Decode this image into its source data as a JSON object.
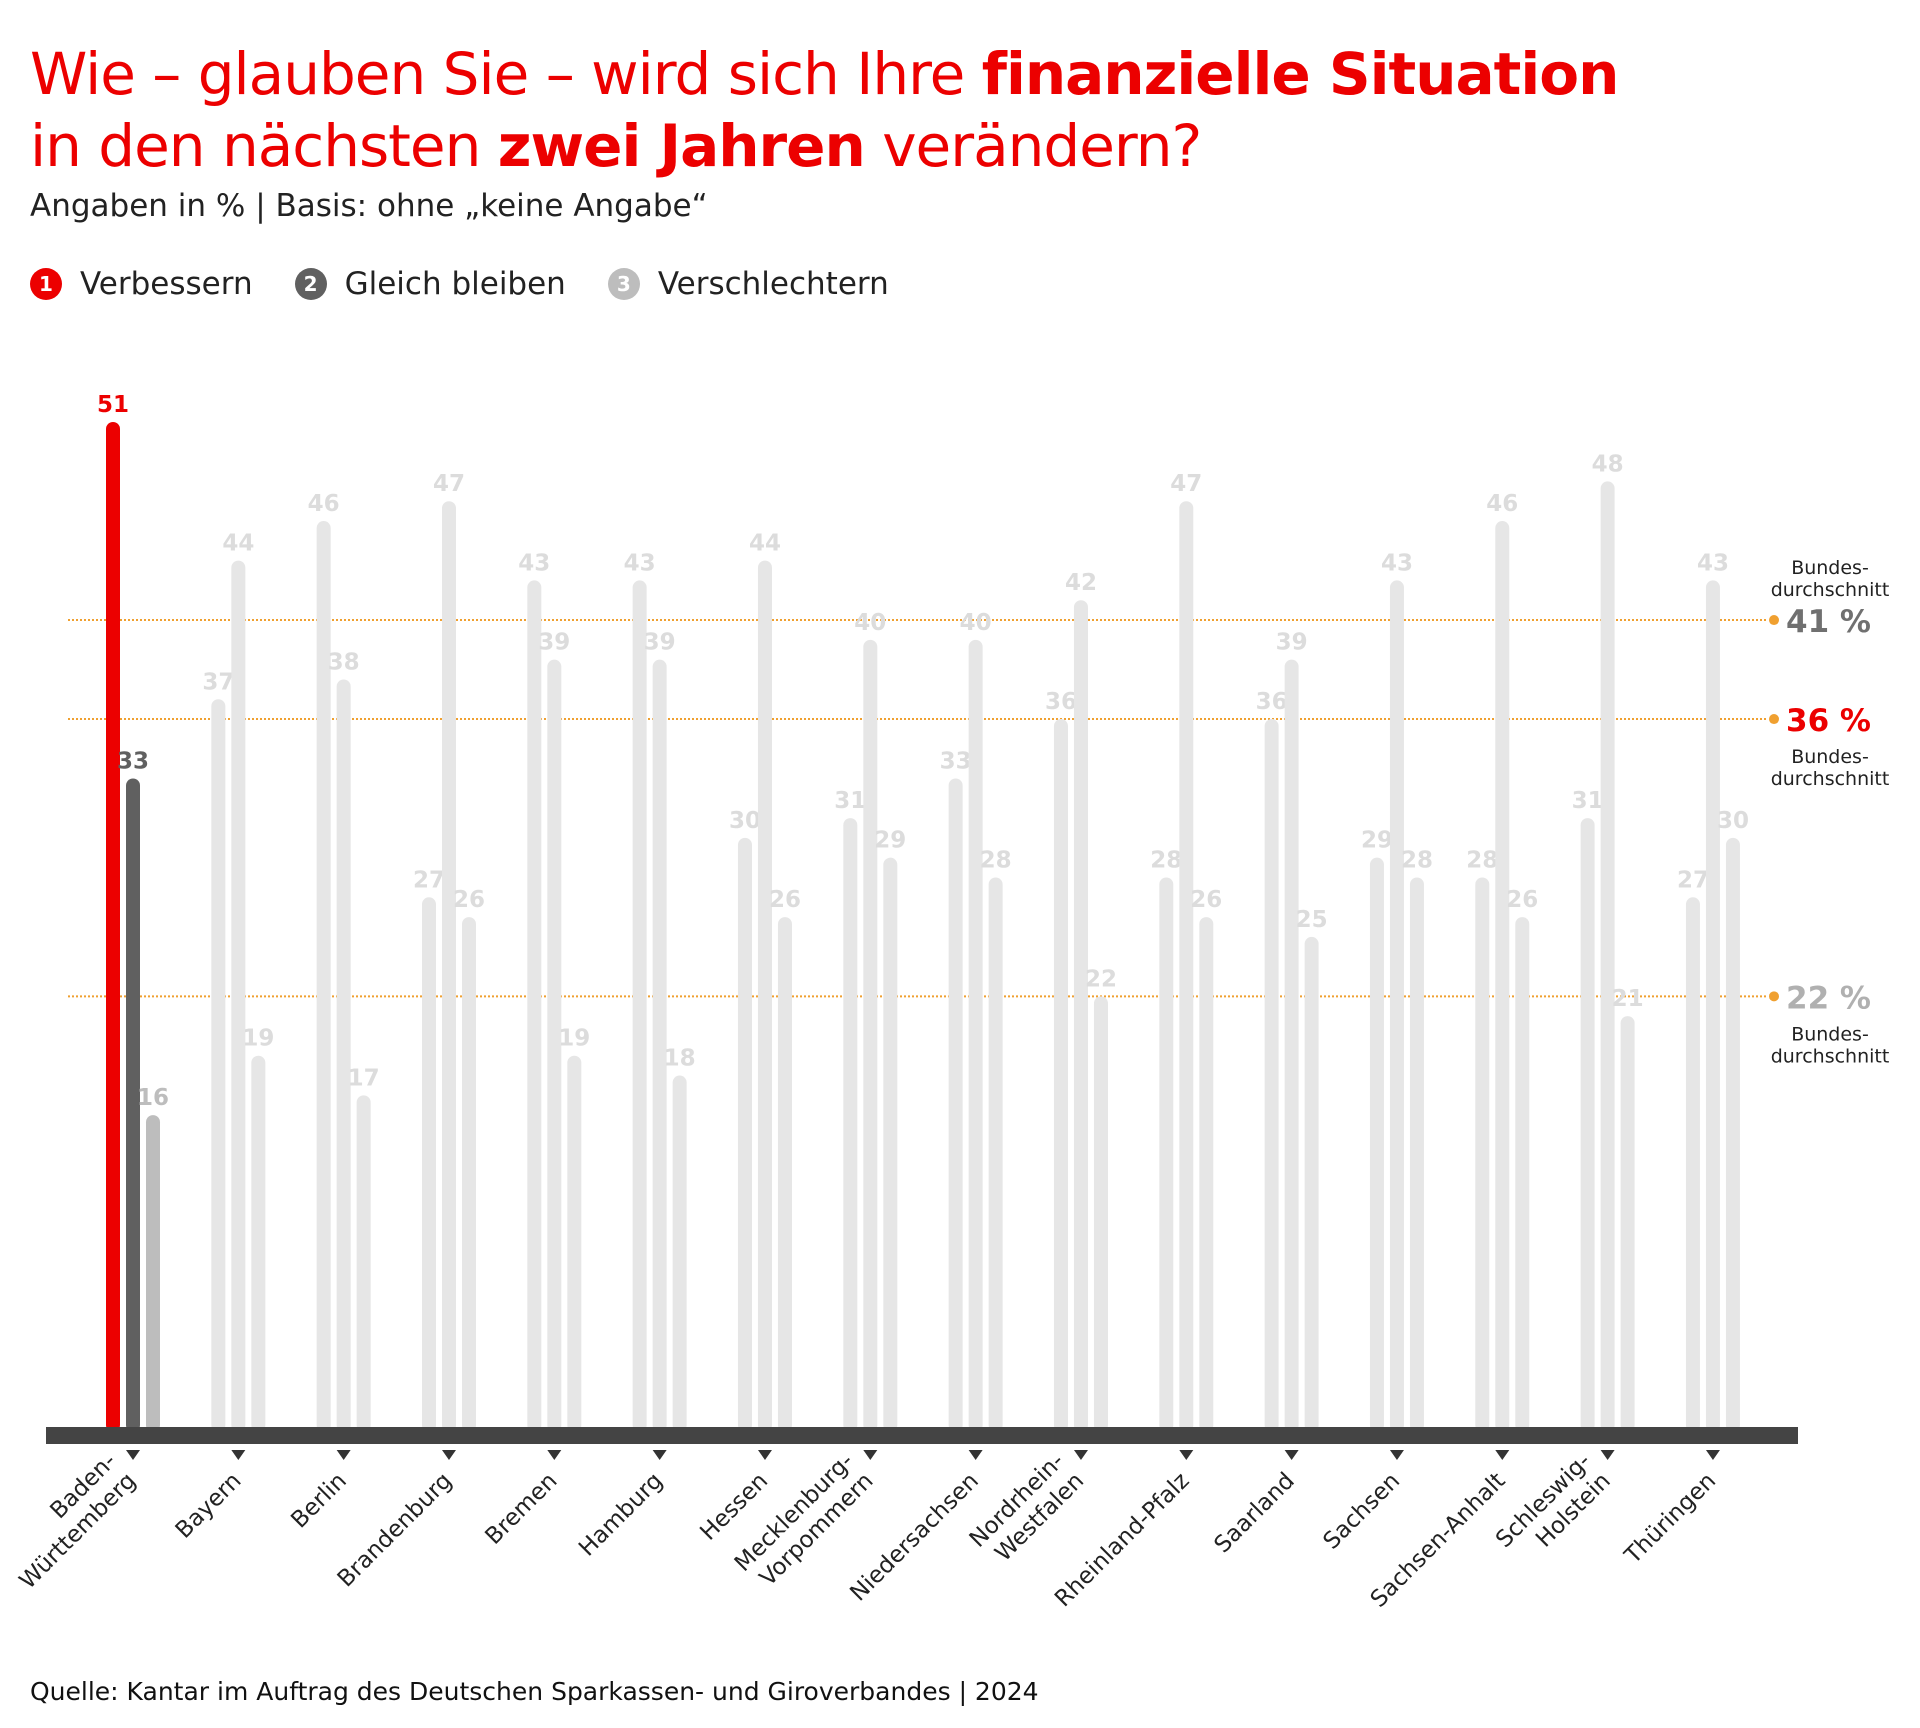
{
  "title": {
    "line1_pre": "Wie – glauben Sie – wird sich Ihre ",
    "line1_bold": "finanzielle Situation",
    "line2_pre": "in den nächsten ",
    "line2_bold": "zwei Jahren",
    "line2_post": " verändern?"
  },
  "subtitle": "Angaben in % | Basis: ohne „keine Angabe“",
  "legend": [
    {
      "num": "1",
      "label": "Verbessern",
      "color": "#ec0000"
    },
    {
      "num": "2",
      "label": "Gleich bleiben",
      "color": "#606060"
    },
    {
      "num": "3",
      "label": "Verschlechtern",
      "color": "#bdbdbd"
    }
  ],
  "colors": {
    "inactive": "#e6e6e6",
    "avg_line": "#f0a030",
    "axis": "#444444"
  },
  "chart_data": {
    "type": "bar",
    "ylim": [
      0,
      51
    ],
    "highlighted_category": "Baden-Württemberg",
    "categories": [
      "Baden-Württemberg",
      "Bayern",
      "Berlin",
      "Brandenburg",
      "Bremen",
      "Hamburg",
      "Hessen",
      "Mecklenburg-Vorpommern",
      "Niedersachsen",
      "Nordrhein-Westfalen",
      "Rheinland-Pfalz",
      "Saarland",
      "Sachsen",
      "Sachsen-Anhalt",
      "Schleswig-Holstein",
      "Thüringen"
    ],
    "category_label_lines": [
      [
        "Baden-",
        "Württemberg"
      ],
      [
        "Bayern"
      ],
      [
        "Berlin"
      ],
      [
        "Brandenburg"
      ],
      [
        "Bremen"
      ],
      [
        "Hamburg"
      ],
      [
        "Hessen"
      ],
      [
        "Mecklenburg-",
        "Vorpommern"
      ],
      [
        "Niedersachsen"
      ],
      [
        "Nordrhein-",
        "Westfalen"
      ],
      [
        "Rheinland-Pfalz"
      ],
      [
        "Saarland"
      ],
      [
        "Sachsen"
      ],
      [
        "Sachsen-Anhalt"
      ],
      [
        "Schleswig-",
        "Holstein"
      ],
      [
        "Thüringen"
      ]
    ],
    "series": [
      {
        "name": "Verbessern",
        "values": [
          51,
          37,
          46,
          27,
          43,
          43,
          30,
          31,
          33,
          36,
          28,
          36,
          29,
          28,
          31,
          27
        ]
      },
      {
        "name": "Gleich bleiben",
        "values": [
          33,
          44,
          38,
          47,
          39,
          39,
          44,
          40,
          40,
          42,
          47,
          39,
          43,
          46,
          48,
          43
        ]
      },
      {
        "name": "Verschlechtern",
        "values": [
          16,
          19,
          17,
          26,
          19,
          18,
          26,
          29,
          28,
          22,
          26,
          25,
          28,
          26,
          21,
          30
        ]
      }
    ],
    "averages": [
      {
        "series": "Gleich bleiben",
        "value": 41,
        "label": "41 %",
        "note_lines": [
          "Bundes-",
          "durchschnitt"
        ],
        "note_position": "above",
        "color": "#707070"
      },
      {
        "series": "Verbessern",
        "value": 36,
        "label": "36 %",
        "note_lines": [
          "Bundes-",
          "durchschnitt"
        ],
        "note_position": "below",
        "color": "#ec0000"
      },
      {
        "series": "Verschlechtern",
        "value": 22,
        "label": "22 %",
        "note_lines": [
          "Bundes-",
          "durchschnitt"
        ],
        "note_position": "below",
        "color": "#b0b0b0"
      }
    ]
  },
  "source": "Quelle: Kantar im Auftrag des Deutschen Sparkassen- und Giroverbandes | 2024"
}
